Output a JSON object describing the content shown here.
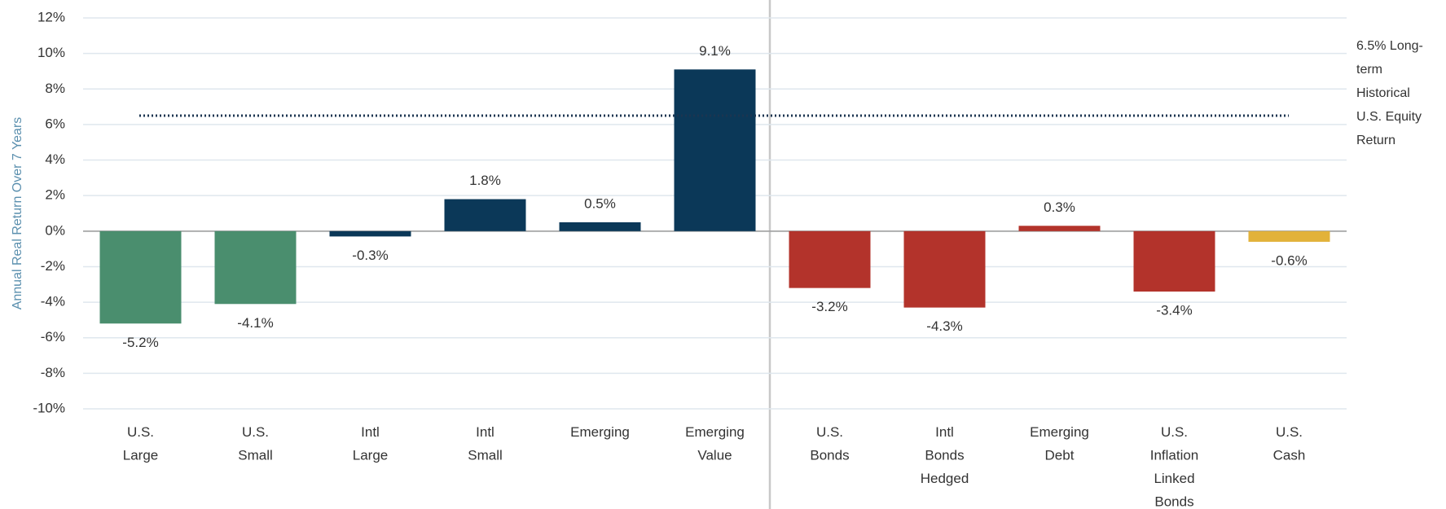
{
  "chart_data": {
    "type": "bar",
    "y_axis_label": "Annual Real Return Over 7 Years",
    "categories": [
      [
        "U.S.",
        "Large"
      ],
      [
        "U.S.",
        "Small"
      ],
      [
        "Intl",
        "Large"
      ],
      [
        "Intl",
        "Small"
      ],
      [
        "Emerging"
      ],
      [
        "Emerging",
        "Value"
      ],
      [
        "U.S.",
        "Bonds"
      ],
      [
        "Intl",
        "Bonds",
        "Hedged"
      ],
      [
        "Emerging",
        "Debt"
      ],
      [
        "U.S.",
        "Inflation",
        "Linked",
        "Bonds"
      ],
      [
        "U.S.",
        "Cash"
      ]
    ],
    "values": [
      -5.2,
      -4.1,
      -0.3,
      1.8,
      0.5,
      9.1,
      -3.2,
      -4.3,
      0.3,
      -3.4,
      -0.6
    ],
    "value_labels": [
      "-5.2%",
      "-4.1%",
      "-0.3%",
      "1.8%",
      "0.5%",
      "9.1%",
      "-3.2%",
      "-4.3%",
      "0.3%",
      "-3.4%",
      "-0.6%"
    ],
    "colors": [
      "#4a8e6e",
      "#4a8e6e",
      "#0b3858",
      "#0b3858",
      "#0b3858",
      "#0b3858",
      "#b3332b",
      "#b3332b",
      "#b3332b",
      "#b3332b",
      "#e2b23a"
    ],
    "ylim": [
      -10,
      12
    ],
    "yticks": [
      {
        "value": -10,
        "label": "-10%"
      },
      {
        "value": -8,
        "label": "-8%"
      },
      {
        "value": -6,
        "label": "-6%"
      },
      {
        "value": -4,
        "label": "-4%"
      },
      {
        "value": -2,
        "label": "-2%"
      },
      {
        "value": 0,
        "label": "0%"
      },
      {
        "value": 2,
        "label": "2%"
      },
      {
        "value": 4,
        "label": "4%"
      },
      {
        "value": 6,
        "label": "6%"
      },
      {
        "value": 8,
        "label": "8%"
      },
      {
        "value": 10,
        "label": "10%"
      },
      {
        "value": 12,
        "label": "12%"
      }
    ],
    "grid": true,
    "reference_line": {
      "value": 6.5,
      "label": [
        "6.5% Long-",
        "term",
        "Historical",
        "U.S. Equity",
        "Return"
      ]
    }
  }
}
